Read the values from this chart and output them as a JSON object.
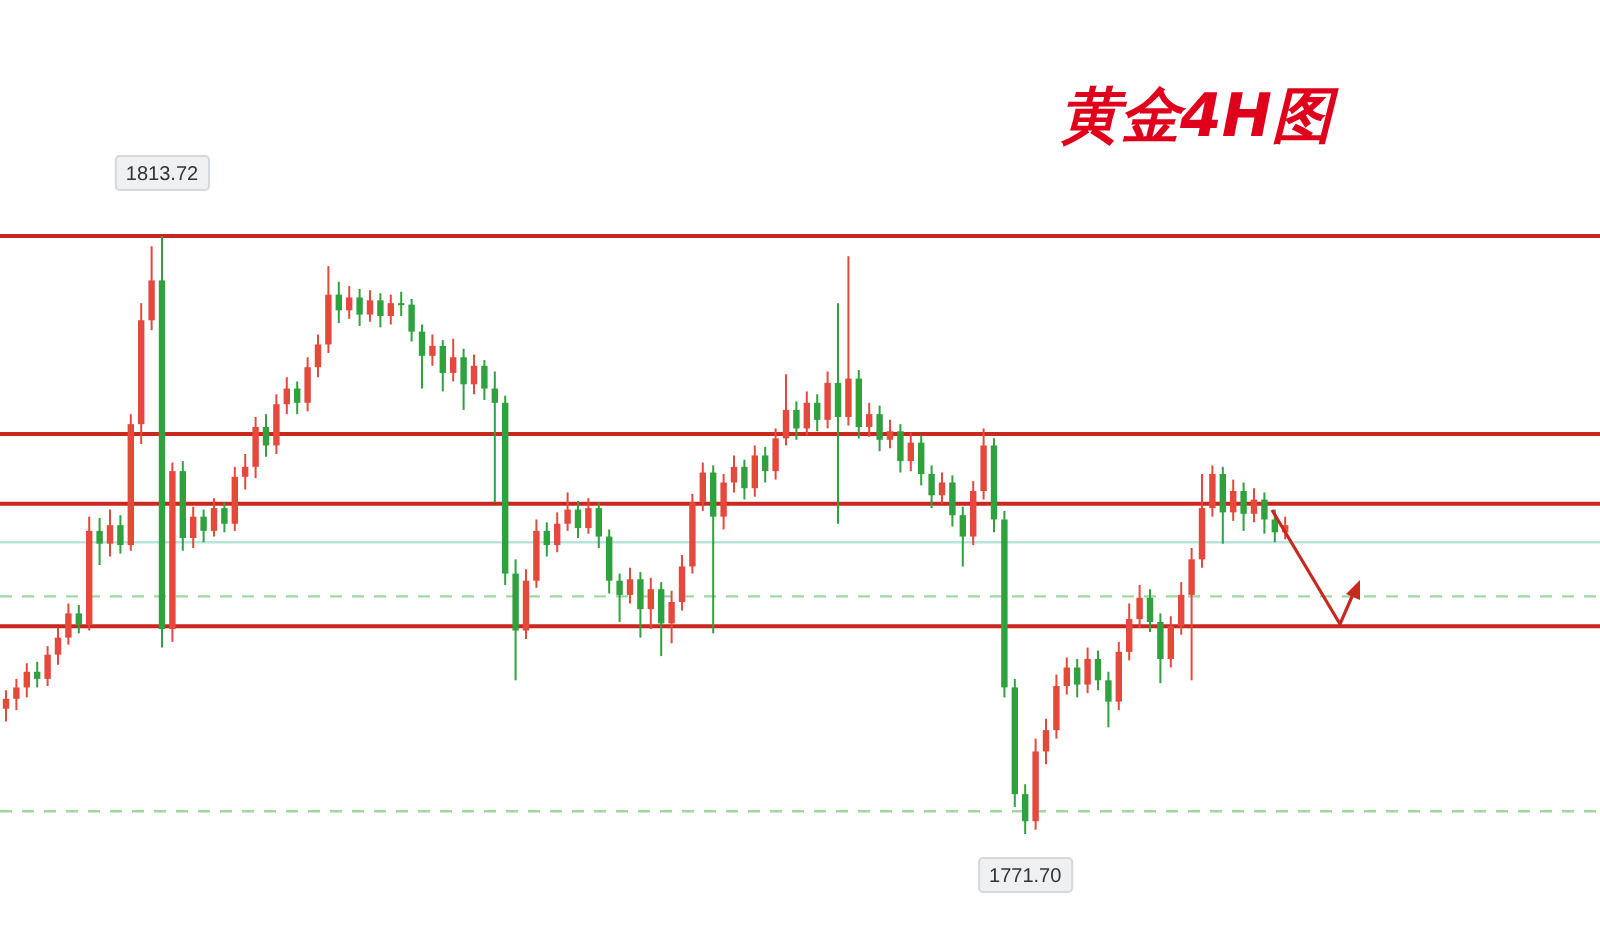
{
  "chart_data": {
    "type": "candlestick",
    "title": "黄金4H图",
    "categories": [
      null,
      null,
      null,
      null,
      null,
      null,
      null,
      null,
      null,
      null,
      null,
      null,
      null,
      null,
      null,
      null,
      null,
      null,
      null,
      null,
      null,
      null,
      null,
      null,
      null,
      null,
      null,
      null,
      null,
      null,
      null,
      null,
      null,
      null,
      null,
      null,
      null,
      null,
      null,
      null,
      null,
      null,
      null,
      null,
      null,
      null,
      null,
      null,
      null,
      null,
      null,
      null,
      null,
      null,
      null,
      null,
      null,
      null,
      null,
      null,
      null,
      null,
      null,
      null,
      null,
      null,
      null,
      null,
      null,
      null,
      null,
      null,
      null,
      null,
      null,
      null,
      null,
      null,
      null,
      null,
      null,
      null,
      null,
      null,
      null,
      null,
      null,
      null,
      null,
      null,
      null,
      null,
      null,
      null,
      null,
      null,
      null,
      null,
      null,
      null,
      null,
      null,
      null,
      null,
      null,
      null,
      null,
      null,
      null,
      null,
      null,
      null,
      null,
      null,
      null,
      null,
      null,
      null,
      null,
      null,
      null,
      null,
      null,
      null
    ],
    "ohlc": [
      [
        1780.5,
        1781.8,
        1779.6,
        1781.2
      ],
      [
        1781.2,
        1782.6,
        1780.4,
        1782.0
      ],
      [
        1782.0,
        1783.7,
        1781.3,
        1783.1
      ],
      [
        1783.1,
        1783.8,
        1782.0,
        1782.6
      ],
      [
        1782.6,
        1784.9,
        1782.1,
        1784.3
      ],
      [
        1784.3,
        1786.2,
        1783.6,
        1785.5
      ],
      [
        1785.5,
        1787.9,
        1785.0,
        1787.2
      ],
      [
        1787.2,
        1787.8,
        1785.8,
        1786.4
      ],
      [
        1786.4,
        1794.0,
        1786.0,
        1793.0
      ],
      [
        1793.0,
        1793.9,
        1790.6,
        1792.1
      ],
      [
        1792.1,
        1794.5,
        1791.2,
        1793.4
      ],
      [
        1793.4,
        1794.1,
        1791.4,
        1792.0
      ],
      [
        1792.0,
        1801.2,
        1791.6,
        1800.5
      ],
      [
        1800.5,
        1809.0,
        1799.1,
        1807.8
      ],
      [
        1807.8,
        1813.0,
        1807.1,
        1810.6
      ],
      [
        1810.6,
        1813.72,
        1784.8,
        1786.1
      ],
      [
        1786.1,
        1797.8,
        1785.2,
        1797.2
      ],
      [
        1797.2,
        1797.9,
        1791.6,
        1792.5
      ],
      [
        1792.5,
        1794.7,
        1791.8,
        1794.0
      ],
      [
        1794.0,
        1794.5,
        1792.2,
        1793.0
      ],
      [
        1793.0,
        1795.3,
        1792.6,
        1794.6
      ],
      [
        1794.6,
        1795.0,
        1792.9,
        1793.5
      ],
      [
        1793.5,
        1797.5,
        1793.0,
        1796.8
      ],
      [
        1796.8,
        1798.4,
        1795.9,
        1797.5
      ],
      [
        1797.5,
        1801.0,
        1796.7,
        1800.3
      ],
      [
        1800.3,
        1801.2,
        1798.2,
        1799.0
      ],
      [
        1799.0,
        1802.6,
        1798.4,
        1801.9
      ],
      [
        1801.9,
        1803.8,
        1801.2,
        1803.0
      ],
      [
        1803.0,
        1803.5,
        1801.2,
        1802.0
      ],
      [
        1802.0,
        1805.2,
        1801.4,
        1804.5
      ],
      [
        1804.5,
        1806.8,
        1803.8,
        1806.1
      ],
      [
        1806.1,
        1811.6,
        1805.5,
        1809.6
      ],
      [
        1809.6,
        1810.5,
        1807.6,
        1808.5
      ],
      [
        1808.5,
        1810.2,
        1807.9,
        1809.4
      ],
      [
        1809.4,
        1810.0,
        1807.4,
        1808.2
      ],
      [
        1808.2,
        1809.9,
        1807.7,
        1809.2
      ],
      [
        1809.2,
        1809.7,
        1807.3,
        1808.1
      ],
      [
        1808.1,
        1809.6,
        1807.5,
        1809.0
      ],
      [
        1809.0,
        1809.8,
        1808.1,
        1808.9
      ],
      [
        1808.9,
        1809.3,
        1806.3,
        1807.0
      ],
      [
        1807.0,
        1807.5,
        1803.0,
        1805.3
      ],
      [
        1805.3,
        1806.8,
        1804.6,
        1806.0
      ],
      [
        1806.0,
        1806.4,
        1802.8,
        1804.1
      ],
      [
        1804.1,
        1806.5,
        1803.5,
        1805.2
      ],
      [
        1805.2,
        1805.8,
        1801.5,
        1803.3
      ],
      [
        1803.3,
        1805.4,
        1802.6,
        1804.6
      ],
      [
        1804.6,
        1805.0,
        1802.2,
        1803.0
      ],
      [
        1803.0,
        1804.2,
        1795.0,
        1802.0
      ],
      [
        1802.0,
        1802.5,
        1789.2,
        1790.0
      ],
      [
        1790.0,
        1791.0,
        1782.5,
        1786.0
      ],
      [
        1786.0,
        1790.3,
        1785.4,
        1789.5
      ],
      [
        1789.5,
        1793.8,
        1789.0,
        1793.0
      ],
      [
        1793.0,
        1793.6,
        1791.2,
        1792.0
      ],
      [
        1792.0,
        1794.3,
        1791.5,
        1793.5
      ],
      [
        1793.5,
        1795.7,
        1793.0,
        1794.5
      ],
      [
        1794.5,
        1795.1,
        1792.5,
        1793.2
      ],
      [
        1793.2,
        1795.3,
        1792.8,
        1794.6
      ],
      [
        1794.6,
        1795.0,
        1791.8,
        1792.6
      ],
      [
        1792.6,
        1793.1,
        1788.6,
        1789.5
      ],
      [
        1789.5,
        1790.0,
        1786.6,
        1788.5
      ],
      [
        1788.5,
        1790.4,
        1787.9,
        1789.6
      ],
      [
        1789.6,
        1790.1,
        1785.5,
        1787.5
      ],
      [
        1787.5,
        1789.7,
        1786.1,
        1788.9
      ],
      [
        1788.9,
        1789.4,
        1784.2,
        1786.5
      ],
      [
        1786.5,
        1788.8,
        1785.1,
        1788.0
      ],
      [
        1788.0,
        1791.3,
        1787.4,
        1790.5
      ],
      [
        1790.5,
        1795.6,
        1790.0,
        1795.0
      ],
      [
        1795.0,
        1797.8,
        1794.4,
        1797.1
      ],
      [
        1797.1,
        1797.6,
        1785.8,
        1794.0
      ],
      [
        1794.0,
        1797.0,
        1793.1,
        1796.4
      ],
      [
        1796.4,
        1798.3,
        1795.7,
        1797.5
      ],
      [
        1797.5,
        1798.0,
        1795.2,
        1796.0
      ],
      [
        1796.0,
        1799.0,
        1795.4,
        1798.3
      ],
      [
        1798.3,
        1798.9,
        1796.4,
        1797.2
      ],
      [
        1797.2,
        1800.2,
        1796.6,
        1799.5
      ],
      [
        1799.5,
        1804.0,
        1799.0,
        1801.5
      ],
      [
        1801.5,
        1802.1,
        1799.4,
        1800.2
      ],
      [
        1800.2,
        1802.8,
        1799.7,
        1802.0
      ],
      [
        1802.0,
        1802.6,
        1800.0,
        1800.8
      ],
      [
        1800.8,
        1804.2,
        1800.2,
        1803.4
      ],
      [
        1803.4,
        1809.0,
        1793.5,
        1801.0
      ],
      [
        1801.0,
        1812.3,
        1800.4,
        1803.7
      ],
      [
        1803.7,
        1804.3,
        1799.5,
        1800.3
      ],
      [
        1800.3,
        1802.0,
        1799.6,
        1801.2
      ],
      [
        1801.2,
        1801.8,
        1798.6,
        1799.4
      ],
      [
        1799.4,
        1800.8,
        1798.8,
        1800.0
      ],
      [
        1800.0,
        1800.5,
        1797.1,
        1797.9
      ],
      [
        1797.9,
        1799.9,
        1797.2,
        1799.2
      ],
      [
        1799.2,
        1799.7,
        1796.2,
        1797.0
      ],
      [
        1797.0,
        1797.6,
        1794.6,
        1795.5
      ],
      [
        1795.5,
        1797.1,
        1794.9,
        1796.4
      ],
      [
        1796.4,
        1796.9,
        1793.3,
        1794.1
      ],
      [
        1794.1,
        1794.7,
        1790.5,
        1792.6
      ],
      [
        1792.6,
        1796.5,
        1792.0,
        1795.8
      ],
      [
        1795.8,
        1800.2,
        1795.2,
        1799.0
      ],
      [
        1799.0,
        1799.5,
        1792.9,
        1793.8
      ],
      [
        1793.8,
        1794.4,
        1781.3,
        1782.0
      ],
      [
        1782.0,
        1782.6,
        1773.6,
        1774.5
      ],
      [
        1774.5,
        1775.2,
        1771.7,
        1772.6
      ],
      [
        1772.6,
        1778.4,
        1772.0,
        1777.5
      ],
      [
        1777.5,
        1779.8,
        1776.6,
        1779.0
      ],
      [
        1779.0,
        1782.9,
        1778.4,
        1782.1
      ],
      [
        1782.1,
        1784.1,
        1781.5,
        1783.4
      ],
      [
        1783.4,
        1784.0,
        1781.3,
        1782.2
      ],
      [
        1782.2,
        1784.8,
        1781.6,
        1784.0
      ],
      [
        1784.0,
        1784.6,
        1781.8,
        1782.5
      ],
      [
        1782.5,
        1783.1,
        1779.2,
        1781.0
      ],
      [
        1781.0,
        1785.2,
        1780.4,
        1784.5
      ],
      [
        1784.5,
        1787.9,
        1783.9,
        1786.8
      ],
      [
        1786.8,
        1789.2,
        1786.2,
        1788.3
      ],
      [
        1788.3,
        1788.9,
        1785.9,
        1786.6
      ],
      [
        1786.6,
        1787.2,
        1782.3,
        1784.0
      ],
      [
        1784.0,
        1787.0,
        1783.4,
        1786.3
      ],
      [
        1786.3,
        1789.4,
        1785.7,
        1788.5
      ],
      [
        1788.5,
        1791.8,
        1782.5,
        1791.0
      ],
      [
        1791.0,
        1797.0,
        1790.4,
        1794.6
      ],
      [
        1794.6,
        1797.6,
        1794.0,
        1797.0
      ],
      [
        1797.0,
        1797.5,
        1792.1,
        1794.3
      ],
      [
        1794.3,
        1796.6,
        1793.7,
        1795.8
      ],
      [
        1795.8,
        1796.4,
        1793.0,
        1794.2
      ],
      [
        1794.2,
        1796.0,
        1793.6,
        1795.2
      ],
      [
        1795.2,
        1795.7,
        1792.8,
        1793.8
      ],
      [
        1793.8,
        1794.5,
        1792.2,
        1792.9
      ],
      [
        1792.9,
        1794.0,
        1792.4,
        1793.4
      ]
    ],
    "ref_lines": [
      {
        "axis": "y",
        "value": 1813.72,
        "color": "#c8281e",
        "line_style": "solid"
      },
      {
        "axis": "y",
        "value": 1799.8,
        "color": "#c8281e",
        "line_style": "solid"
      },
      {
        "axis": "y",
        "value": 1794.9,
        "color": "#c8281e",
        "line_style": "solid"
      },
      {
        "axis": "y",
        "value": 1786.3,
        "color": "#c8281e",
        "line_style": "solid"
      },
      {
        "axis": "y",
        "value": 1792.2,
        "color": "#b9e4dd",
        "line_style": "solid"
      },
      {
        "axis": "y",
        "value": 1788.4,
        "color": "#9fd89f",
        "line_style": "dashed"
      },
      {
        "axis": "y",
        "value": 1773.3,
        "color": "#9fd89f",
        "line_style": "dashed"
      }
    ],
    "annotations": [
      {
        "text": "1813.72",
        "y": 1813.72
      },
      {
        "text": "1771.70",
        "y": 1771.7
      }
    ]
  }
}
